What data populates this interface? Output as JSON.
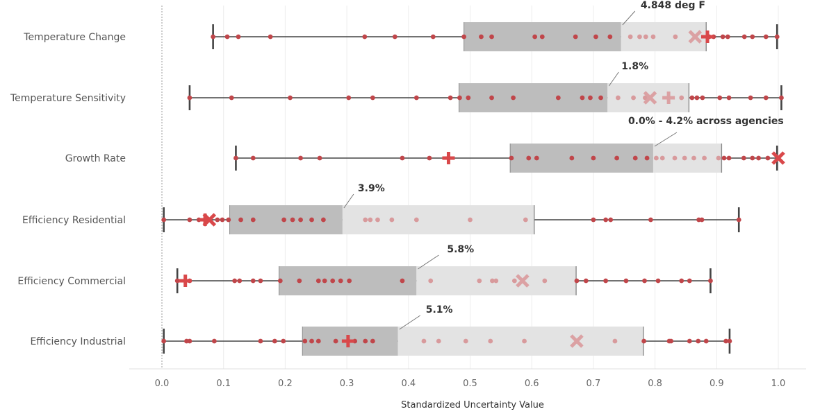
{
  "chart_data": {
    "type": "box",
    "xlabel": "Standardized Uncertainty Value",
    "xlim": [
      0,
      1.0
    ],
    "xticks": [
      0.0,
      0.1,
      0.2,
      0.3,
      0.4,
      0.5,
      0.6,
      0.7,
      0.8,
      0.9,
      1.0
    ],
    "xtick_labels": [
      "0.0",
      "0.1",
      "0.2",
      "0.3",
      "0.4",
      "0.5",
      "0.6",
      "0.7",
      "0.8",
      "0.9",
      "1.0"
    ],
    "grid": "vertical",
    "colors": {
      "point": "#c0464a",
      "point_faded": "#d89a9c",
      "box_lower": "#bdbdbd",
      "box_upper": "#e3e3e3",
      "whisker": "#444444",
      "marker": "#d9484a",
      "marker_faded": "#dba1a3"
    },
    "categories": [
      "Temperature Change",
      "Temperature Sensitivity",
      "Growth Rate",
      "Efficiency Residential",
      "Efficiency Commercial",
      "Efficiency Industrial"
    ],
    "rows": [
      {
        "category": "Temperature Change",
        "whisker_low": 0.083,
        "q1": 0.49,
        "median": 0.745,
        "q3": 0.883,
        "whisker_high": 0.998,
        "plus_marker": 0.885,
        "x_marker": 0.865,
        "annotation": "4.848 deg F",
        "points": [
          0.083,
          0.106,
          0.124,
          0.176,
          0.329,
          0.378,
          0.44,
          0.49,
          0.518,
          0.535,
          0.605,
          0.617,
          0.671,
          0.704,
          0.727,
          0.76,
          0.775,
          0.785,
          0.797,
          0.833,
          0.888,
          0.895,
          0.91,
          0.918,
          0.945,
          0.958,
          0.98,
          0.998
        ]
      },
      {
        "category": "Temperature Sensitivity",
        "whisker_low": 0.045,
        "q1": 0.482,
        "median": 0.723,
        "q3": 0.855,
        "whisker_high": 1.005,
        "plus_marker": 0.822,
        "x_marker": 0.792,
        "annotation": "1.8%",
        "points": [
          0.045,
          0.113,
          0.208,
          0.303,
          0.342,
          0.413,
          0.468,
          0.483,
          0.497,
          0.535,
          0.57,
          0.643,
          0.682,
          0.695,
          0.712,
          0.74,
          0.765,
          0.784,
          0.843,
          0.86,
          0.868,
          0.877,
          0.905,
          0.92,
          0.955,
          0.98,
          1.005
        ]
      },
      {
        "category": "Growth Rate",
        "whisker_low": 0.12,
        "q1": 0.565,
        "median": 0.797,
        "q3": 0.908,
        "whisker_high": 0.998,
        "plus_marker": 0.465,
        "x_marker": 1.0,
        "annotation": "0.0% - 4.2% across agencies",
        "points": [
          0.12,
          0.148,
          0.225,
          0.256,
          0.39,
          0.434,
          0.567,
          0.595,
          0.608,
          0.665,
          0.7,
          0.738,
          0.768,
          0.787,
          0.802,
          0.812,
          0.832,
          0.848,
          0.863,
          0.88,
          0.903,
          0.912,
          0.92,
          0.944,
          0.958,
          0.968,
          0.983
        ]
      },
      {
        "category": "Efficiency Residential",
        "whisker_low": 0.003,
        "q1": 0.11,
        "median": 0.293,
        "q3": 0.604,
        "whisker_high": 0.936,
        "plus_marker": 0.07,
        "x_marker": 0.077,
        "annotation": "3.9%",
        "points": [
          0.003,
          0.045,
          0.06,
          0.075,
          0.09,
          0.098,
          0.108,
          0.128,
          0.148,
          0.198,
          0.212,
          0.225,
          0.243,
          0.262,
          0.33,
          0.338,
          0.35,
          0.373,
          0.413,
          0.5,
          0.59,
          0.7,
          0.72,
          0.728,
          0.793,
          0.871,
          0.876,
          0.936
        ]
      },
      {
        "category": "Efficiency Commercial",
        "whisker_low": 0.025,
        "q1": 0.19,
        "median": 0.413,
        "q3": 0.672,
        "whisker_high": 0.89,
        "plus_marker": 0.038,
        "x_marker": 0.585,
        "annotation": "5.8%",
        "points": [
          0.025,
          0.045,
          0.118,
          0.126,
          0.148,
          0.16,
          0.192,
          0.223,
          0.254,
          0.264,
          0.277,
          0.29,
          0.304,
          0.39,
          0.436,
          0.515,
          0.536,
          0.542,
          0.572,
          0.621,
          0.673,
          0.688,
          0.72,
          0.753,
          0.783,
          0.805,
          0.843,
          0.856,
          0.89
        ]
      },
      {
        "category": "Efficiency Industrial",
        "whisker_low": 0.003,
        "q1": 0.228,
        "median": 0.383,
        "q3": 0.781,
        "whisker_high": 0.921,
        "plus_marker": 0.302,
        "x_marker": 0.673,
        "annotation": "5.1%",
        "points": [
          0.003,
          0.04,
          0.045,
          0.085,
          0.16,
          0.183,
          0.197,
          0.232,
          0.243,
          0.254,
          0.282,
          0.313,
          0.33,
          0.342,
          0.425,
          0.449,
          0.493,
          0.533,
          0.588,
          0.735,
          0.782,
          0.823,
          0.826,
          0.856,
          0.87,
          0.883,
          0.915,
          0.921
        ]
      }
    ]
  }
}
